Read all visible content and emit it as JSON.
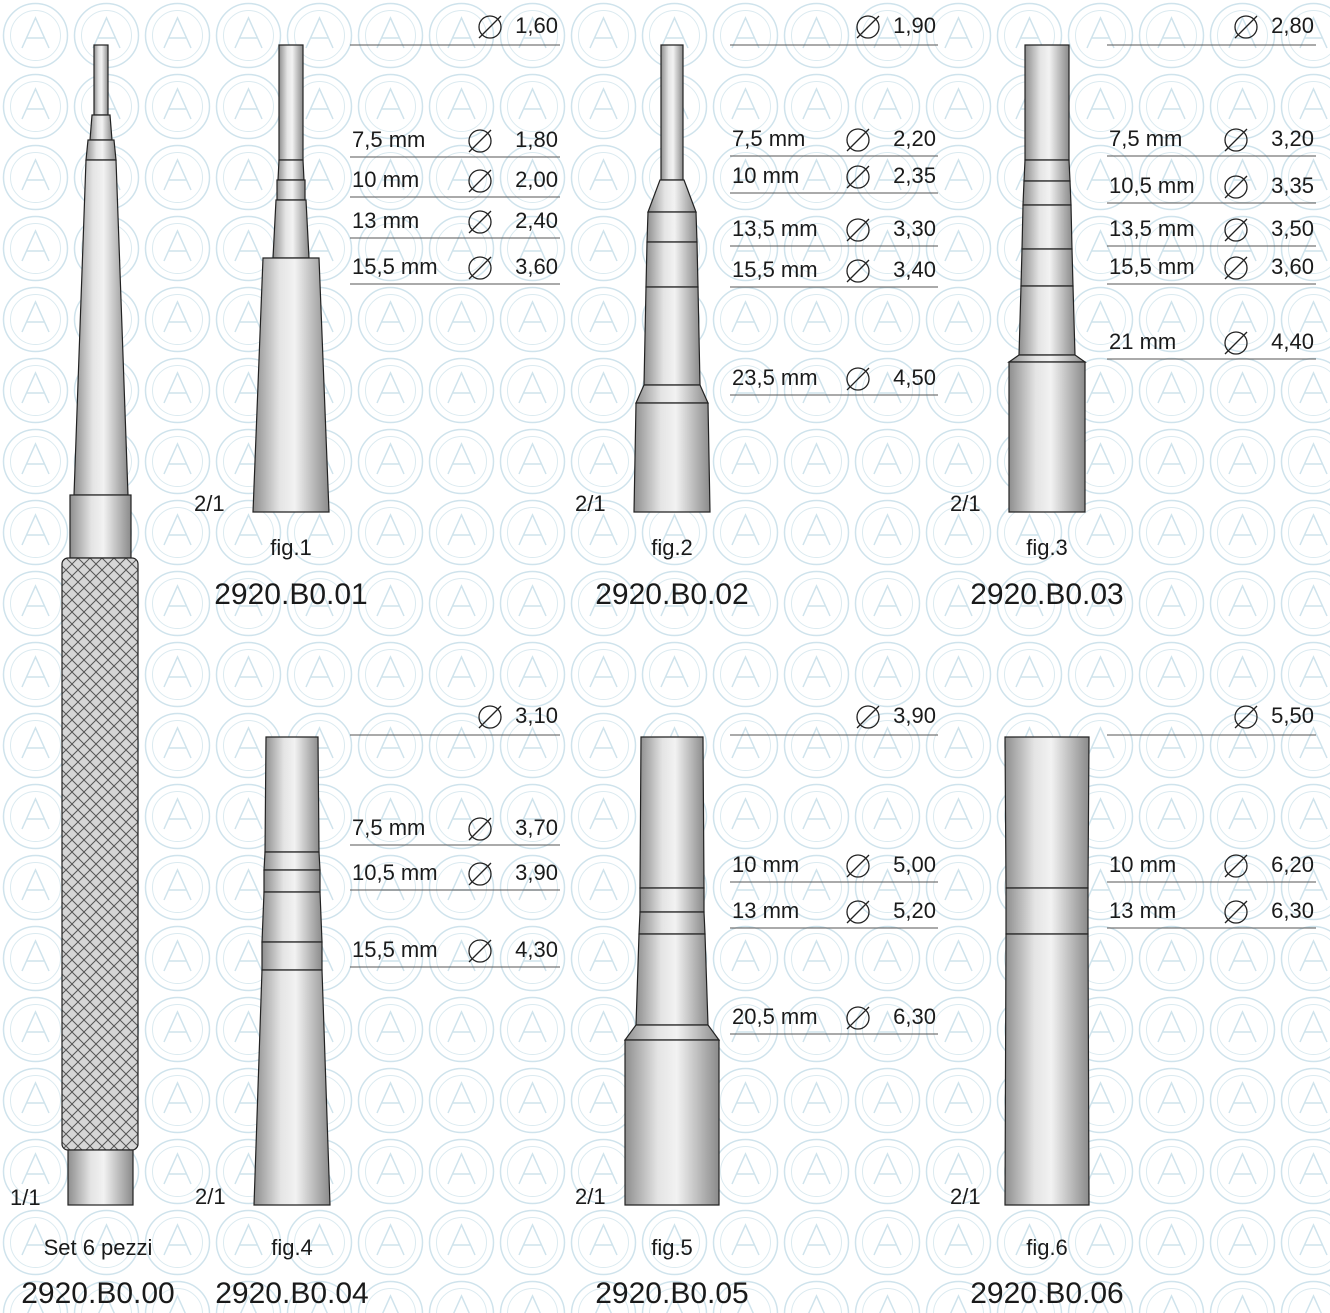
{
  "handle": {
    "scale": "1/1",
    "label": "Set 6 pezzi",
    "code": "2920.B0.00"
  },
  "figures": [
    {
      "scale": "2/1",
      "label": "fig.1",
      "code": "2920.B0.01",
      "top_diameter": "1,60",
      "rows": [
        {
          "depth": "7,5 mm",
          "diameter": "1,80"
        },
        {
          "depth": "10 mm",
          "diameter": "2,00"
        },
        {
          "depth": "13 mm",
          "diameter": "2,40"
        },
        {
          "depth": "15,5 mm",
          "diameter": "3,60"
        }
      ]
    },
    {
      "scale": "2/1",
      "label": "fig.2",
      "code": "2920.B0.02",
      "top_diameter": "1,90",
      "rows": [
        {
          "depth": "7,5 mm",
          "diameter": "2,20"
        },
        {
          "depth": "10 mm",
          "diameter": "2,35"
        },
        {
          "depth": "13,5 mm",
          "diameter": "3,30"
        },
        {
          "depth": "15,5 mm",
          "diameter": "3,40"
        },
        {
          "depth": "23,5 mm",
          "diameter": "4,50"
        }
      ]
    },
    {
      "scale": "2/1",
      "label": "fig.3",
      "code": "2920.B0.03",
      "top_diameter": "2,80",
      "rows": [
        {
          "depth": "7,5 mm",
          "diameter": "3,20"
        },
        {
          "depth": "10,5 mm",
          "diameter": "3,35"
        },
        {
          "depth": "13,5 mm",
          "diameter": "3,50"
        },
        {
          "depth": "15,5 mm",
          "diameter": "3,60"
        },
        {
          "depth": "21 mm",
          "diameter": "4,40"
        }
      ]
    },
    {
      "scale": "2/1",
      "label": "fig.4",
      "code": "2920.B0.04",
      "top_diameter": "3,10",
      "rows": [
        {
          "depth": "7,5 mm",
          "diameter": "3,70"
        },
        {
          "depth": "10,5 mm",
          "diameter": "3,90"
        },
        {
          "depth": "15,5 mm",
          "diameter": "4,30"
        }
      ]
    },
    {
      "scale": "2/1",
      "label": "fig.5",
      "code": "2920.B0.05",
      "top_diameter": "3,90",
      "rows": [
        {
          "depth": "10 mm",
          "diameter": "5,00"
        },
        {
          "depth": "13 mm",
          "diameter": "5,20"
        },
        {
          "depth": "20,5 mm",
          "diameter": "6,30"
        }
      ]
    },
    {
      "scale": "2/1",
      "label": "fig.6",
      "code": "2920.B0.06",
      "top_diameter": "5,50",
      "rows": [
        {
          "depth": "10 mm",
          "diameter": "6,20"
        },
        {
          "depth": "13 mm",
          "diameter": "6,30"
        }
      ]
    }
  ]
}
